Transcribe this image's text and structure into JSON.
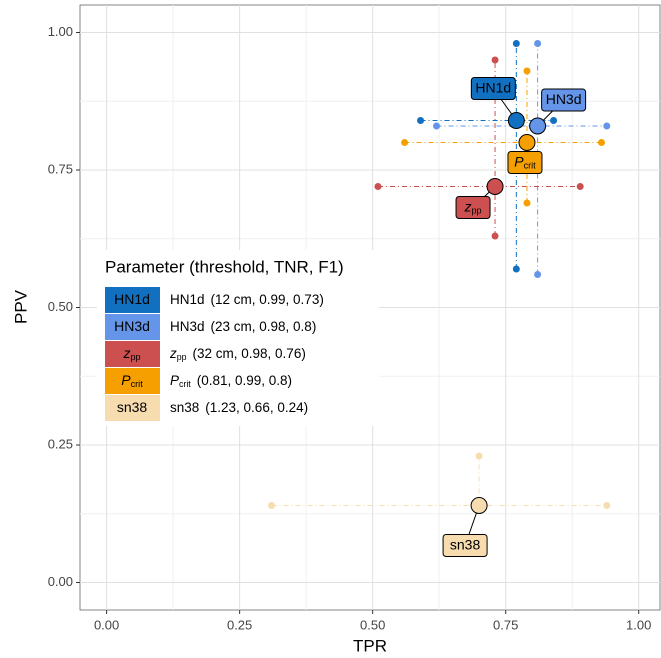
{
  "chart_data": {
    "type": "scatter",
    "x_label": "TPR",
    "y_label": "PPV",
    "xlim": [
      -0.05,
      1.04
    ],
    "ylim": [
      -0.05,
      1.05
    ],
    "xticks": [
      {
        "value": 0,
        "label": "0.00"
      },
      {
        "value": 0.25,
        "label": "0.25"
      },
      {
        "value": 0.5,
        "label": "0.50"
      },
      {
        "value": 0.75,
        "label": "0.75"
      },
      {
        "value": 1,
        "label": "1.00"
      }
    ],
    "yticks": [
      {
        "value": 0,
        "label": "0.00"
      },
      {
        "value": 0.25,
        "label": "0.25"
      },
      {
        "value": 0.5,
        "label": "0.50"
      },
      {
        "value": 0.75,
        "label": "0.75"
      },
      {
        "value": 1,
        "label": "1.00"
      }
    ],
    "grid": true,
    "legend_title": "Parameter (threshold, TNR, F1)",
    "series": [
      {
        "name": "HN1d",
        "detail": "(12 cm, 0.99, 0.73)",
        "color": "#1170c0",
        "text_color": "#ffffff",
        "tpr": 0.77,
        "ppv": 0.84,
        "tpr_range": [
          0.59,
          0.84
        ],
        "ppv_range": [
          0.57,
          0.98
        ]
      },
      {
        "name": "HN3d",
        "detail": "(23 cm, 0.98, 0.8)",
        "color": "#6495e8",
        "text_color": "#ffffff",
        "tpr": 0.81,
        "ppv": 0.83,
        "tpr_range": [
          0.62,
          0.94
        ],
        "ppv_range": [
          0.56,
          0.98
        ]
      },
      {
        "name": "z",
        "sub": "pp",
        "detail": "(32 cm, 0.98, 0.76)",
        "color": "#cc5050",
        "text_color": "#000000",
        "tpr": 0.73,
        "ppv": 0.72,
        "tpr_range": [
          0.51,
          0.89
        ],
        "ppv_range": [
          0.63,
          0.95
        ]
      },
      {
        "name": "P",
        "sub": "crit",
        "detail": "(0.81, 0.99, 0.8)",
        "color": "#f5a000",
        "text_color": "#000000",
        "tpr": 0.79,
        "ppv": 0.8,
        "tpr_range": [
          0.56,
          0.93
        ],
        "ppv_range": [
          0.69,
          0.93
        ]
      },
      {
        "name": "sn38",
        "detail": "(1.23, 0.66, 0.24)",
        "color": "#f7dcb0",
        "text_color": "#000000",
        "tpr": 0.7,
        "ppv": 0.14,
        "tpr_range": [
          0.31,
          0.94
        ],
        "ppv_range": [
          null,
          0.23
        ]
      }
    ]
  }
}
